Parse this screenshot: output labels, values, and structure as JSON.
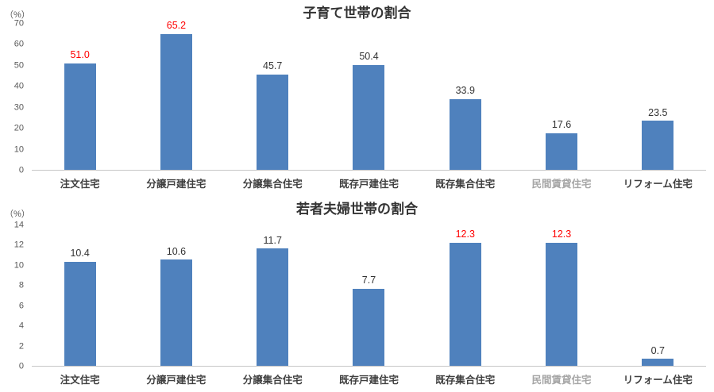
{
  "chart_data": [
    {
      "type": "bar",
      "title": "子育て世帯の割合",
      "unit_label": "（%）",
      "xlabel": "",
      "ylabel": "（%）",
      "ylim": [
        0,
        70
      ],
      "yticks": [
        0,
        10,
        20,
        30,
        40,
        50,
        60,
        70
      ],
      "grid": false,
      "legend": "none",
      "categories": [
        "注文住宅",
        "分譲戸建住宅",
        "分譲集合住宅",
        "既存戸建住宅",
        "既存集合住宅",
        "民間賃貸住宅",
        "リフォーム住宅"
      ],
      "values": [
        51.0,
        65.2,
        45.7,
        50.4,
        33.9,
        17.6,
        23.5
      ],
      "bar_color": "#4f81bd",
      "value_label_colors": [
        "#ff0000",
        "#ff0000",
        "#333333",
        "#333333",
        "#333333",
        "#333333",
        "#333333"
      ],
      "category_label_colors": [
        "#404040",
        "#404040",
        "#404040",
        "#404040",
        "#404040",
        "#a6a6a6",
        "#404040"
      ]
    },
    {
      "type": "bar",
      "title": "若者夫婦世帯の割合",
      "unit_label": "（%）",
      "xlabel": "",
      "ylabel": "（%）",
      "ylim": [
        0,
        14
      ],
      "yticks": [
        0,
        2,
        4,
        6,
        8,
        10,
        12,
        14
      ],
      "grid": false,
      "legend": "none",
      "categories": [
        "注文住宅",
        "分譲戸建住宅",
        "分譲集合住宅",
        "既存戸建住宅",
        "既存集合住宅",
        "民間賃貸住宅",
        "リフォーム住宅"
      ],
      "values": [
        10.4,
        10.6,
        11.7,
        7.7,
        12.3,
        12.3,
        0.7
      ],
      "bar_color": "#4f81bd",
      "value_label_colors": [
        "#333333",
        "#333333",
        "#333333",
        "#333333",
        "#ff0000",
        "#ff0000",
        "#333333"
      ],
      "category_label_colors": [
        "#404040",
        "#404040",
        "#404040",
        "#404040",
        "#404040",
        "#a6a6a6",
        "#404040"
      ]
    }
  ]
}
